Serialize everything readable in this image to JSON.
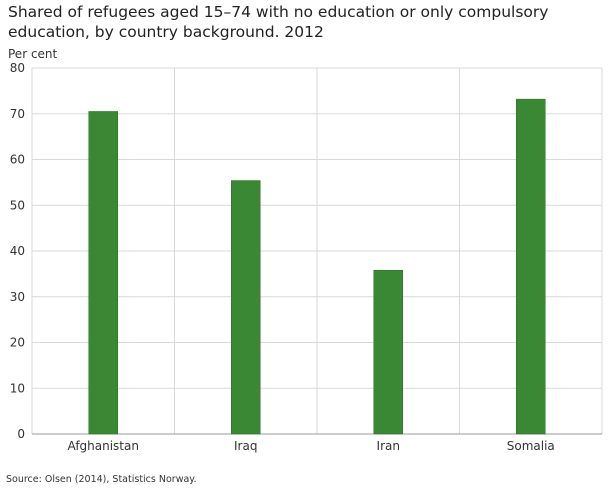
{
  "chart_data": {
    "type": "bar",
    "title": "Shared of refugees aged 15–74 with no education or only compulsory education, by country background. 2012",
    "ylabel": "Per cent",
    "xlabel": "",
    "categories": [
      "Afghanistan",
      "Iraq",
      "Iran",
      "Somalia"
    ],
    "values": [
      70.5,
      55.4,
      35.8,
      73.2
    ],
    "ylim": [
      0,
      80
    ],
    "yticks": [
      0,
      10,
      20,
      30,
      40,
      50,
      60,
      70,
      80
    ],
    "grid": true,
    "bar_color": "#3a8734",
    "source": "Source: Olsen (2014), Statistics Norway."
  }
}
